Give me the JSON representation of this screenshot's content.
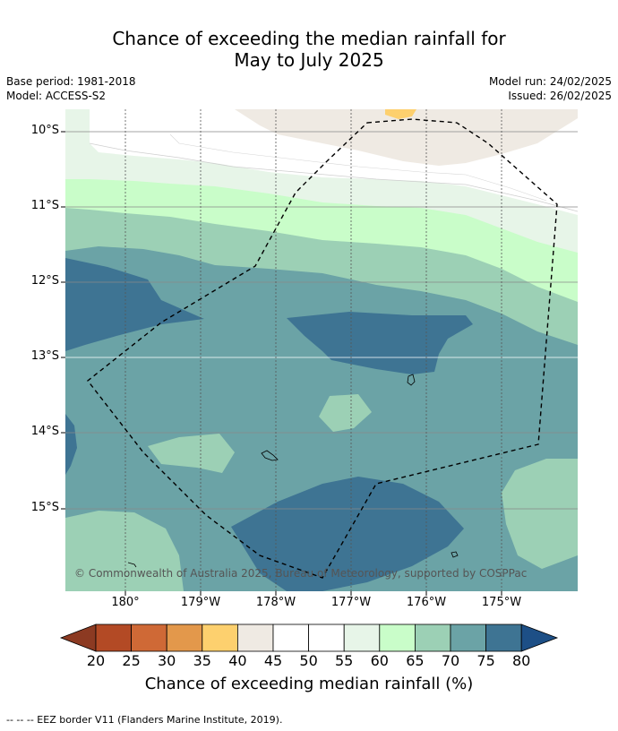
{
  "title": {
    "line1": "Chance of exceeding the median rainfall for",
    "line2": "May to July 2025"
  },
  "meta": {
    "base_period": "Base period: 1981-2018",
    "model": "Model: ACCESS-S2",
    "model_run": "Model run: 24/02/2025",
    "issued": "Issued: 26/02/2025"
  },
  "map": {
    "lat_labels": [
      "10°S",
      "11°S",
      "12°S",
      "13°S",
      "14°S",
      "15°S"
    ],
    "lon_labels": [
      "180°",
      "179°W",
      "178°W",
      "177°W",
      "176°W",
      "175°W"
    ],
    "credit": "© Commonwealth of Australia 2025, Bureau of Meteorology, supported by COSPPac"
  },
  "colorbar": {
    "ticks": [
      "20",
      "25",
      "30",
      "35",
      "40",
      "45",
      "50",
      "55",
      "60",
      "65",
      "70",
      "75",
      "80"
    ],
    "colors": [
      "#8c3a22",
      "#b34a25",
      "#cf6936",
      "#e3984b",
      "#fdd06e",
      "#efeae3",
      "#ffffff",
      "#ffffff",
      "#e7f5e8",
      "#c9fdc9",
      "#9cd0b5",
      "#6ba3a6",
      "#3e7493",
      "#1d4f86"
    ],
    "title": "Chance of exceeding median rainfall (%)"
  },
  "footnote": "-- -- -- EEZ border V11 (Flanders Marine Institute, 2019)."
}
